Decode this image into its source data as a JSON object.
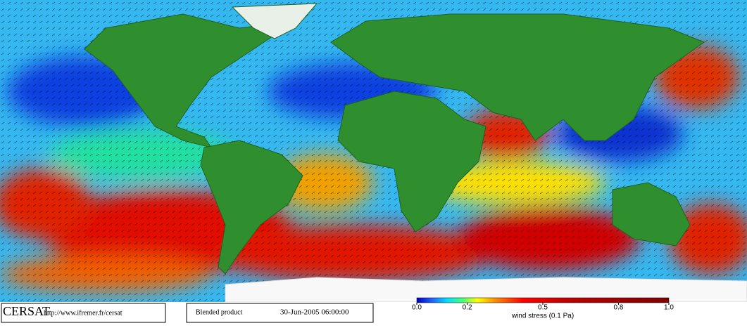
{
  "footer": {
    "logo": "CERSAT",
    "url": "http://www.ifremer.fr/cersat",
    "product": "Blended product",
    "datetime": "30-Jun-2005 06:00:00"
  },
  "colorbar": {
    "label": "wind stress (0.1 Pa)",
    "ticks": [
      {
        "value": 0,
        "label": "0.0"
      },
      0.2,
      0.5,
      0.8,
      {
        "value": 1,
        "label": "1.0"
      }
    ]
  }
}
